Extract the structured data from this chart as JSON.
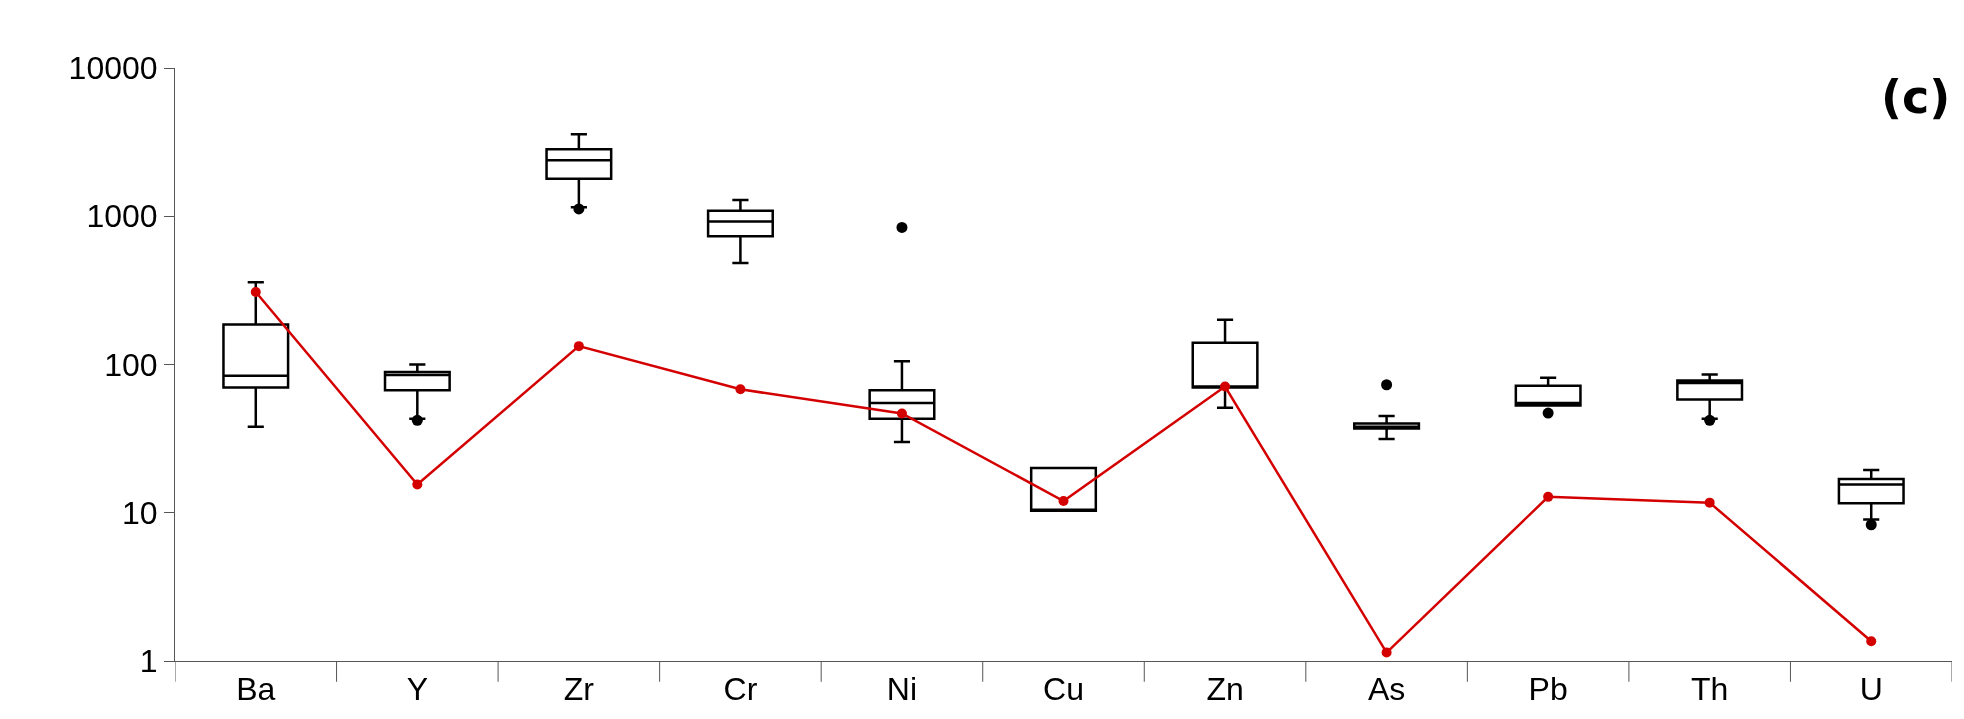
{
  "chart_data": {
    "type": "box",
    "categories": [
      "Ba",
      "Y",
      "Zr",
      "Cr",
      "Ni",
      "Cu",
      "Zn",
      "As",
      "Pb",
      "Th",
      "U"
    ],
    "log": true,
    "ylim": [
      1,
      10000
    ],
    "yticks": [
      1,
      10,
      100,
      1000,
      10000
    ],
    "annotations": [
      "(c)"
    ],
    "series": [
      {
        "color": "#000000",
        "boxes": [
          {
            "low": 38,
            "q1": 70,
            "median": 84,
            "q3": 186,
            "high": 359
          },
          {
            "low": 43,
            "q1": 67,
            "median": 85,
            "q3": 89,
            "high": 100,
            "outliers": [
              42
            ]
          },
          {
            "low": 1150,
            "q1": 1790,
            "median": 2390,
            "q3": 2830,
            "high": 3570,
            "outliers": [
              1120
            ]
          },
          {
            "low": 484,
            "q1": 733,
            "median": 920,
            "q3": 1090,
            "high": 1285
          },
          {
            "low": 30,
            "q1": 43,
            "median": 55,
            "q3": 67,
            "high": 105,
            "outliers": [
              841
            ]
          },
          {
            "low": 10.3,
            "q1": 10.3,
            "median": 10.3,
            "q3": 20,
            "high": 20
          },
          {
            "low": 51,
            "q1": 70,
            "median": 70,
            "q3": 140,
            "high": 200
          },
          {
            "low": 31.5,
            "q1": 37,
            "median": 38,
            "q3": 40,
            "high": 45,
            "outliers": [
              73
            ]
          },
          {
            "low": 53,
            "q1": 53,
            "median": 55,
            "q3": 72,
            "high": 81.5,
            "outliers": [
              47
            ]
          },
          {
            "low": 43,
            "q1": 58,
            "median": 75,
            "q3": 78,
            "high": 85.5,
            "outliers": [
              42
            ]
          },
          {
            "low": 9,
            "q1": 11.6,
            "median": 15.5,
            "q3": 16.9,
            "high": 19.4,
            "outliers": [
              8.3
            ]
          }
        ]
      },
      {
        "type": "line",
        "color": "#d40000",
        "marker": "circle",
        "line_style": "solid",
        "values": [
          308,
          15.5,
          133,
          68,
          46.7,
          12,
          71,
          1.14,
          12.8,
          11.7,
          1.36
        ]
      }
    ]
  }
}
